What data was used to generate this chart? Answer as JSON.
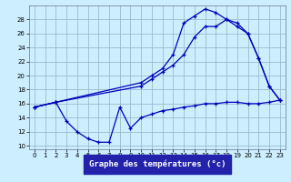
{
  "xlabel": "Graphe des températures (°c)",
  "bg_color": "#cceeff",
  "grid_color": "#99bbcc",
  "line_color": "#0000bb",
  "xlim": [
    -0.5,
    23.5
  ],
  "ylim": [
    9.5,
    30
  ],
  "xticks": [
    0,
    1,
    2,
    3,
    4,
    5,
    6,
    7,
    8,
    9,
    10,
    11,
    12,
    13,
    14,
    15,
    16,
    17,
    18,
    19,
    20,
    21,
    22,
    23
  ],
  "yticks": [
    10,
    12,
    14,
    16,
    18,
    20,
    22,
    24,
    26,
    28
  ],
  "line1_x": [
    0,
    2,
    10,
    11,
    12,
    13,
    14,
    15,
    16,
    17,
    18,
    19,
    20,
    21,
    22,
    23
  ],
  "line1_y": [
    15.5,
    16.2,
    19.0,
    20.0,
    21.0,
    23.0,
    27.5,
    28.5,
    29.5,
    29.0,
    28.0,
    27.5,
    26.0,
    22.5,
    18.5,
    16.5
  ],
  "line2_x": [
    0,
    2,
    3,
    4,
    5,
    6,
    7,
    8,
    9,
    10,
    11,
    12,
    13,
    14,
    15,
    16,
    17,
    18,
    19,
    20,
    21,
    22,
    23
  ],
  "line2_y": [
    15.5,
    16.2,
    13.5,
    12.0,
    11.0,
    10.5,
    10.5,
    15.5,
    12.5,
    14.0,
    14.5,
    15.0,
    15.2,
    15.5,
    15.7,
    16.0,
    16.0,
    16.2,
    16.2,
    16.0,
    16.0,
    16.2,
    16.5
  ],
  "line3_x": [
    0,
    2,
    10,
    11,
    12,
    13,
    14,
    15,
    16,
    17,
    18,
    19,
    20,
    21,
    22,
    23
  ],
  "line3_y": [
    15.5,
    16.2,
    18.5,
    19.5,
    20.5,
    21.5,
    23.0,
    25.5,
    27.0,
    27.0,
    28.0,
    27.0,
    26.0,
    22.5,
    18.5,
    16.5
  ]
}
